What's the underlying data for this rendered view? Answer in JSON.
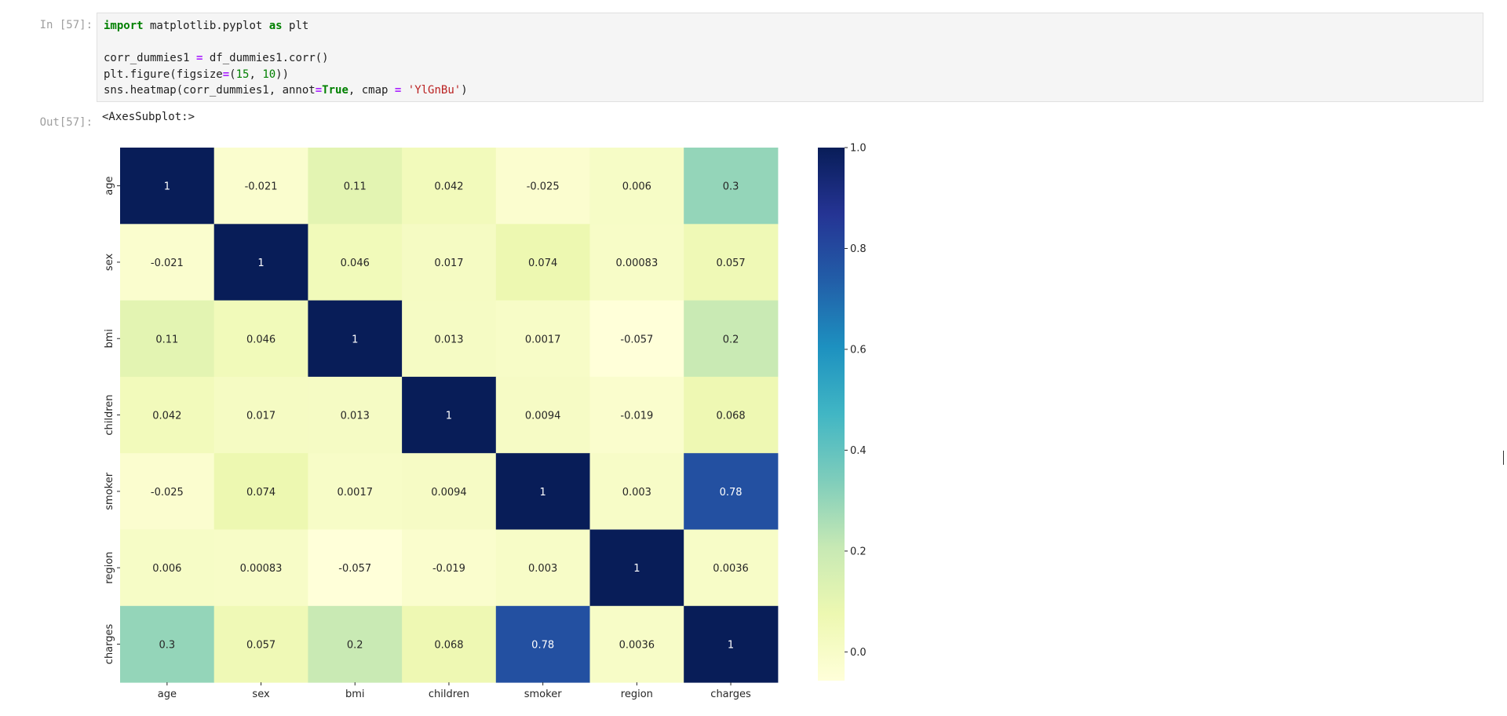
{
  "notebook": {
    "in_prompt": "In [57]:",
    "out_prompt": "Out[57]:",
    "code_lines": [
      [
        {
          "t": "kw",
          "v": "import"
        },
        {
          "t": "txt",
          "v": " matplotlib.pyplot "
        },
        {
          "t": "kw",
          "v": "as"
        },
        {
          "t": "txt",
          "v": " plt"
        }
      ],
      [],
      [
        {
          "t": "txt",
          "v": "corr_dummies1 "
        },
        {
          "t": "op",
          "v": "="
        },
        {
          "t": "txt",
          "v": " df_dummies1.corr()"
        }
      ],
      [
        {
          "t": "txt",
          "v": "plt.figure(figsize"
        },
        {
          "t": "op",
          "v": "="
        },
        {
          "t": "txt",
          "v": "("
        },
        {
          "t": "num",
          "v": "15"
        },
        {
          "t": "txt",
          "v": ", "
        },
        {
          "t": "num",
          "v": "10"
        },
        {
          "t": "txt",
          "v": "))"
        }
      ],
      [
        {
          "t": "txt",
          "v": "sns.heatmap(corr_dummies1, annot"
        },
        {
          "t": "op",
          "v": "="
        },
        {
          "t": "bool",
          "v": "True"
        },
        {
          "t": "txt",
          "v": ", cmap "
        },
        {
          "t": "op",
          "v": "="
        },
        {
          "t": "txt",
          "v": " "
        },
        {
          "t": "str",
          "v": "'YlGnBu'"
        },
        {
          "t": "txt",
          "v": ")"
        }
      ]
    ],
    "output_text": "<AxesSubplot:>"
  },
  "chart_data": {
    "type": "heatmap",
    "colormap": "YlGnBu",
    "rows": [
      "age",
      "sex",
      "bmi",
      "children",
      "smoker",
      "region",
      "charges"
    ],
    "columns": [
      "age",
      "sex",
      "bmi",
      "children",
      "smoker",
      "region",
      "charges"
    ],
    "values": [
      [
        1,
        -0.021,
        0.11,
        0.042,
        -0.025,
        0.006,
        0.3
      ],
      [
        -0.021,
        1,
        0.046,
        0.017,
        0.074,
        0.00083,
        0.057
      ],
      [
        0.11,
        0.046,
        1,
        0.013,
        0.0017,
        -0.057,
        0.2
      ],
      [
        0.042,
        0.017,
        0.013,
        1,
        0.0094,
        -0.019,
        0.068
      ],
      [
        -0.025,
        0.074,
        0.0017,
        0.0094,
        1,
        0.003,
        0.78
      ],
      [
        0.006,
        0.00083,
        -0.057,
        -0.019,
        0.003,
        1,
        0.0036
      ],
      [
        0.3,
        0.057,
        0.2,
        0.068,
        0.78,
        0.0036,
        1
      ]
    ],
    "annotations": [
      [
        "1",
        "-0.021",
        "0.11",
        "0.042",
        "-0.025",
        "0.006",
        "0.3"
      ],
      [
        "-0.021",
        "1",
        "0.046",
        "0.017",
        "0.074",
        "0.00083",
        "0.057"
      ],
      [
        "0.11",
        "0.046",
        "1",
        "0.013",
        "0.0017",
        "-0.057",
        "0.2"
      ],
      [
        "0.042",
        "0.017",
        "0.013",
        "1",
        "0.0094",
        "-0.019",
        "0.068"
      ],
      [
        "-0.025",
        "0.074",
        "0.0017",
        "0.0094",
        "1",
        "0.003",
        "0.78"
      ],
      [
        "0.006",
        "0.00083",
        "-0.057",
        "-0.019",
        "0.003",
        "1",
        "0.0036"
      ],
      [
        "0.3",
        "0.057",
        "0.2",
        "0.068",
        "0.78",
        "0.0036",
        "1"
      ]
    ],
    "colorbar": {
      "range": [
        -0.057,
        1.0
      ],
      "ticks": [
        0.0,
        0.2,
        0.4,
        0.6,
        0.8,
        1.0
      ],
      "tick_labels": [
        "0.0",
        "0.2",
        "0.4",
        "0.6",
        "0.8",
        "1.0"
      ]
    }
  }
}
